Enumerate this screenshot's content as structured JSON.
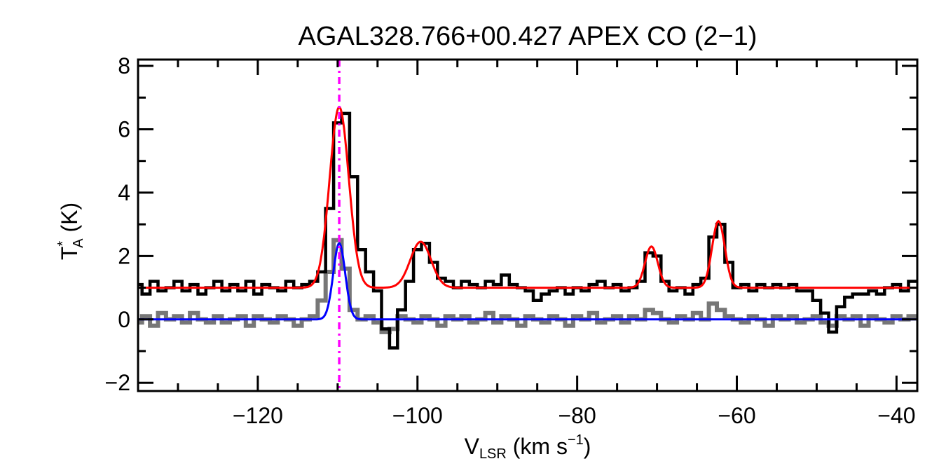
{
  "chart_data": {
    "type": "line",
    "title": "AGAL328.766+00.427  APEX CO (2−1)",
    "xlabel": {
      "main": "V",
      "sub": "LSR",
      "unit": " (km s",
      "sup": "−1",
      "close": ")"
    },
    "ylabel": {
      "main": "T",
      "sup": "*",
      "sub": "A",
      "unit": " (K)"
    },
    "xlim": [
      -135,
      -37.4
    ],
    "ylim": [
      -2.26,
      8.2
    ],
    "xticks": [
      -120,
      -100,
      -80,
      -60,
      -40
    ],
    "xtick_labels": [
      "−120",
      "−100",
      "−80",
      "−60",
      "−40"
    ],
    "yticks": [
      -2,
      0,
      2,
      4,
      6,
      8
    ],
    "ytick_labels": [
      "−2",
      "0",
      "2",
      "4",
      "6",
      "8"
    ],
    "x_minor_step": 5,
    "y_minor_step": 1,
    "grid": false,
    "vline": {
      "x": -109.8,
      "color": "#ff00ff",
      "style": "dash-dot"
    },
    "series": [
      {
        "name": "CO (2-1) spectrum",
        "color": "#000000",
        "style": "step",
        "x_start": -135,
        "x_step": 1,
        "values": [
          1.1,
          0.8,
          1.2,
          0.9,
          1.0,
          1.2,
          0.9,
          1.1,
          0.8,
          1.0,
          1.2,
          0.9,
          1.1,
          0.9,
          1.2,
          0.8,
          1.1,
          1.0,
          0.9,
          1.2,
          1.0,
          1.1,
          1.2,
          1.5,
          3.5,
          6.2,
          6.5,
          4.5,
          2.2,
          1.5,
          0.9,
          -0.3,
          -0.9,
          0.3,
          1.2,
          2.2,
          2.4,
          1.8,
          1.3,
          1.2,
          1.0,
          1.2,
          1.1,
          1.0,
          1.2,
          1.1,
          1.4,
          1.1,
          1.0,
          0.9,
          0.6,
          0.8,
          0.9,
          1.0,
          0.8,
          1.0,
          0.9,
          1.1,
          1.2,
          1.0,
          1.1,
          0.9,
          1.0,
          1.2,
          2.1,
          2.0,
          1.2,
          0.9,
          1.0,
          0.8,
          1.1,
          1.3,
          2.6,
          3.0,
          1.8,
          1.0,
          1.1,
          0.9,
          1.1,
          1.0,
          1.1,
          1.0,
          1.1,
          0.9,
          0.9,
          0.6,
          0.2,
          -0.4,
          0.4,
          0.7,
          0.8,
          0.8,
          0.9,
          0.8,
          1.0,
          1.1,
          0.9,
          1.2
        ]
      },
      {
        "name": "secondary spectrum",
        "color": "#777777",
        "style": "step",
        "x_start": -135,
        "x_step": 1,
        "values": [
          -0.1,
          0.1,
          -0.2,
          0.2,
          0.0,
          0.1,
          -0.1,
          0.2,
          0.0,
          -0.1,
          0.1,
          -0.1,
          0.0,
          0.1,
          -0.2,
          0.1,
          0.0,
          -0.1,
          0.1,
          0.0,
          -0.2,
          0.0,
          0.1,
          0.6,
          1.5,
          2.5,
          1.6,
          0.3,
          0.0,
          0.1,
          -0.1,
          -0.4,
          -0.3,
          0.1,
          0.0,
          -0.1,
          0.1,
          0.0,
          -0.2,
          0.1,
          0.0,
          0.1,
          -0.1,
          0.0,
          0.2,
          -0.1,
          0.1,
          0.0,
          -0.2,
          0.1,
          0.0,
          -0.1,
          0.1,
          0.0,
          -0.2,
          0.1,
          0.0,
          0.2,
          -0.1,
          0.0,
          0.1,
          -0.1,
          0.1,
          0.0,
          0.3,
          0.2,
          0.0,
          -0.1,
          0.1,
          0.0,
          0.2,
          0.0,
          0.5,
          0.3,
          0.1,
          0.0,
          -0.1,
          0.1,
          0.0,
          -0.2,
          0.1,
          0.0,
          0.1,
          -0.1,
          0.0,
          0.1,
          -0.1,
          -0.2,
          0.1,
          0.0,
          0.1,
          -0.2,
          0.1,
          0.0,
          -0.1,
          0.1,
          0.0,
          0.1
        ]
      },
      {
        "name": "red fit",
        "color": "#ff0000",
        "style": "gaussians",
        "baseline": 1.0,
        "components": [
          {
            "center": -109.8,
            "amp": 5.7,
            "sigma": 1.2
          },
          {
            "center": -99.6,
            "amp": 1.45,
            "sigma": 1.3
          },
          {
            "center": -70.7,
            "amp": 1.3,
            "sigma": 0.8
          },
          {
            "center": -62.3,
            "amp": 2.1,
            "sigma": 0.8
          }
        ]
      },
      {
        "name": "blue fit",
        "color": "#0000ff",
        "style": "gaussians",
        "baseline": 0.0,
        "components": [
          {
            "center": -109.8,
            "amp": 2.4,
            "sigma": 0.75
          }
        ]
      }
    ]
  }
}
